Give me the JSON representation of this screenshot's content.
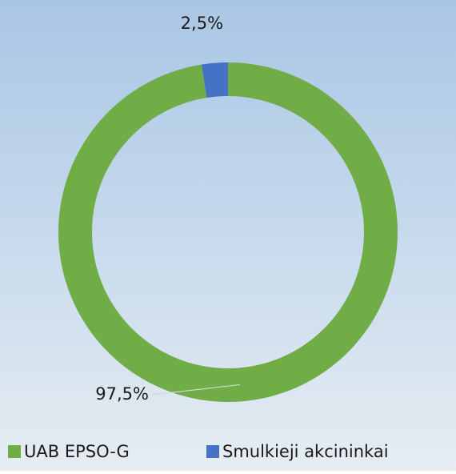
{
  "chart_data": {
    "type": "donut",
    "categories": [
      "UAB EPSO-G",
      "Smulkieji akcininkai"
    ],
    "values": [
      97.5,
      2.5
    ],
    "value_labels": [
      "97,5%",
      "2,5%"
    ],
    "colors": [
      "#70ad47",
      "#4472c4"
    ],
    "legend": "bottom"
  }
}
